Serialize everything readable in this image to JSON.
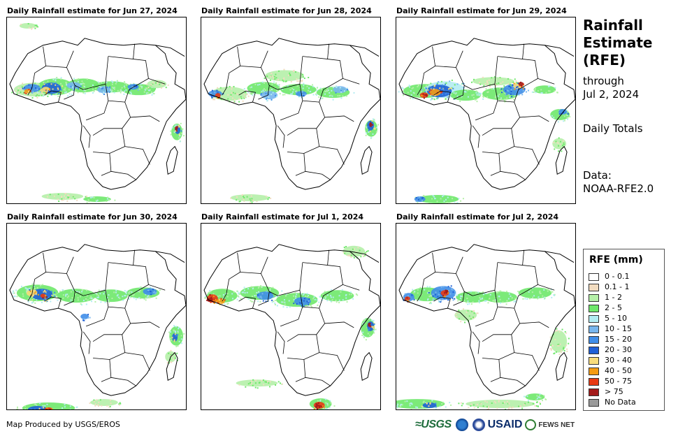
{
  "panels": [
    {
      "title": "Daily Rainfall estimate for Jun 27, 2024"
    },
    {
      "title": "Daily Rainfall estimate for Jun 28, 2024"
    },
    {
      "title": "Daily Rainfall estimate for Jun 29, 2024"
    },
    {
      "title": "Daily Rainfall estimate for Jun 30, 2024"
    },
    {
      "title": "Daily Rainfall estimate for Jul 1, 2024"
    },
    {
      "title": "Daily Rainfall estimate for Jul 2, 2024"
    }
  ],
  "side": {
    "title_line1": "Rainfall",
    "title_line2": "Estimate",
    "title_line3": "(RFE)",
    "through_label": "through",
    "through_date": "Jul 2, 2024",
    "totals": "Daily Totals",
    "data_label": "Data:",
    "data_source": "NOAA-RFE2.0"
  },
  "legend": {
    "title": "RFE (mm)",
    "items": [
      {
        "label": "0 - 0.1",
        "color": "#ffffff"
      },
      {
        "label": "0.1 - 1",
        "color": "#f2dcc0"
      },
      {
        "label": "1 - 2",
        "color": "#b5f0a8"
      },
      {
        "label": "2 - 5",
        "color": "#6ee86a"
      },
      {
        "label": "5 - 10",
        "color": "#b2ecf2"
      },
      {
        "label": "10 - 15",
        "color": "#78b6ee"
      },
      {
        "label": "15 - 20",
        "color": "#3f8de8"
      },
      {
        "label": "20 - 30",
        "color": "#1f5fd6"
      },
      {
        "label": "30 - 40",
        "color": "#f8dc7c"
      },
      {
        "label": "40 - 50",
        "color": "#f59b12"
      },
      {
        "label": "50 - 75",
        "color": "#e83a14"
      },
      {
        "label": "> 75",
        "color": "#a31a1a"
      },
      {
        "label": "No Data",
        "color": "#9a9a9a"
      }
    ]
  },
  "footer": {
    "credit": "Map Produced by USGS/EROS",
    "logos": {
      "usgs": "≈USGS",
      "usaid": "USAID",
      "fews": "FEWS NET"
    }
  }
}
